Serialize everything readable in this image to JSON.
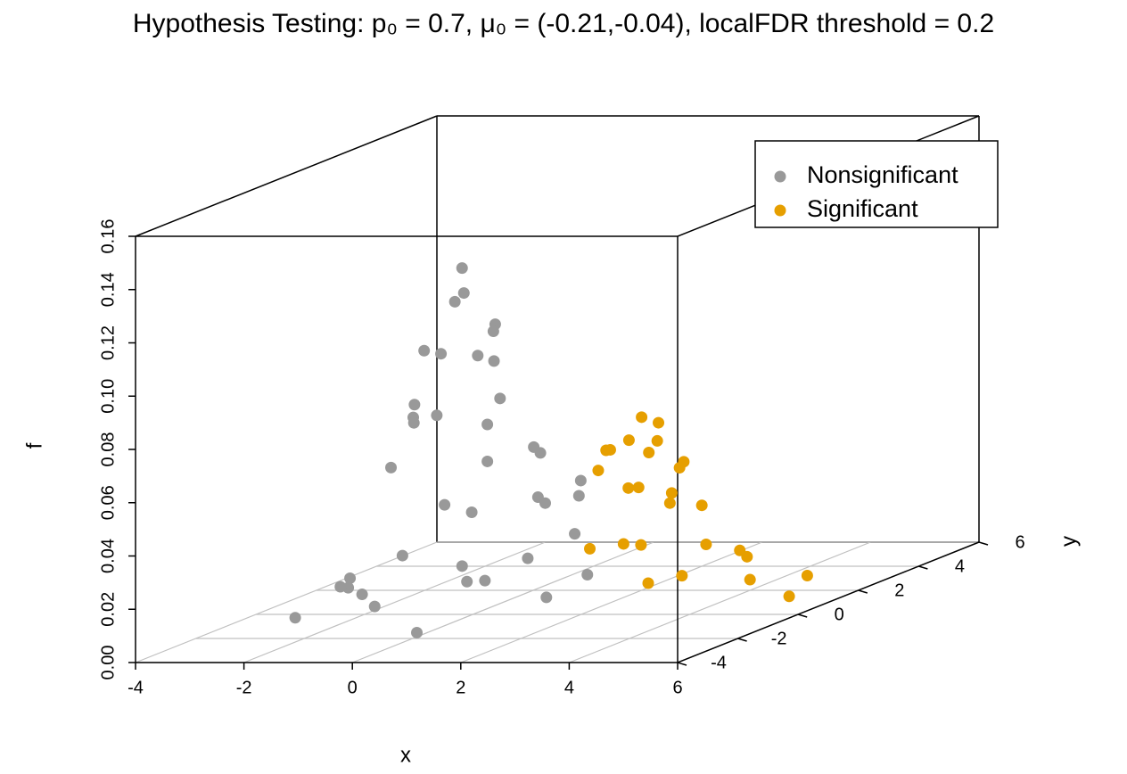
{
  "chart_data": {
    "type": "scatter3d",
    "title": "Hypothesis Testing: p₀ = 0.7, μ₀ = (-0.21,-0.04), localFDR threshold = 0.2",
    "x_label": "x",
    "y_label": "y",
    "z_label": "f",
    "xlim": [
      -4,
      6
    ],
    "ylim": [
      -4,
      6
    ],
    "zlim": [
      0,
      0.16
    ],
    "xticks": [
      -4,
      -2,
      0,
      2,
      4,
      6
    ],
    "yticks": [
      -4,
      -2,
      0,
      2,
      4,
      6
    ],
    "zticks": [
      {
        "value": 0,
        "label": "0.00"
      },
      0.02,
      0.04,
      0.06,
      0.08,
      {
        "value": 0.1,
        "label": "0.10"
      },
      0.12,
      0.14,
      0.16
    ],
    "grid": true,
    "legend": "topright",
    "series": [
      {
        "name": "Nonsignificant",
        "color": "#999999",
        "x": [
          -0.2,
          0.0,
          -0.5,
          0.3,
          -0.8,
          0.6,
          -1.0,
          0.8,
          -1.4,
          0.2,
          -0.4,
          1.2,
          -1.8,
          -1.6,
          1.0,
          -0.1,
          0.5,
          -2.3,
          -0.7,
          1.4,
          -1.2,
          -0.3,
          0.1,
          -0.9,
          0.5,
          -0.6,
          0.9,
          -1.2,
          0.0,
          -0.2,
          1.6,
          -2.0,
          -2.6,
          0.3,
          -1.5,
          1.8,
          -3.0,
          1.1,
          -0.8,
          2.0
        ],
        "y": [
          0.0,
          -0.3,
          0.3,
          0.2,
          -0.5,
          -0.6,
          0.6,
          0.8,
          -0.2,
          -1.3,
          1.2,
          0.0,
          0.9,
          -1.2,
          -1.4,
          2.0,
          1.5,
          0.0,
          -2.0,
          1.0,
          1.8,
          0.7,
          0.5,
          0.0,
          -0.2,
          -0.9,
          0.4,
          0.2,
          0.9,
          -0.7,
          0.5,
          -0.8,
          1.0,
          -2.4,
          2.5,
          -0.8,
          -0.5,
          1.6,
          1.4,
          0.2
        ],
        "z": [
          0.13,
          0.122,
          0.116,
          0.108,
          0.081,
          0.074,
          0.072,
          0.057,
          0.056,
          0.047,
          0.052,
          0.044,
          0.018,
          0.019,
          0.019,
          0.012,
          0.035,
          0.01,
          0.012,
          0.04,
          0.01,
          0.094,
          0.104,
          0.099,
          0.096,
          0.078,
          0.061,
          0.071,
          0.077,
          0.101,
          0.028,
          0.014,
          0.003,
          0.004,
          0.001,
          0.01,
          0.001,
          0.043,
          0.032,
          0.014
        ]
      },
      {
        "name": "Significant",
        "color": "#E69F00",
        "x": [
          2.0,
          2.4,
          1.6,
          2.5,
          1.7,
          2.2,
          1.5,
          2.8,
          3.0,
          1.2,
          2.0,
          2.6,
          3.3,
          1.0,
          3.5,
          2.3,
          4.0,
          2.9,
          4.5,
          5.0,
          1.8,
          2.2,
          2.7,
          1.4,
          3.2,
          0.6
        ],
        "y": [
          2.0,
          1.8,
          2.3,
          2.5,
          1.5,
          1.2,
          2.8,
          1.5,
          2.2,
          2.0,
          3.0,
          0.9,
          1.0,
          3.2,
          2.8,
          3.6,
          2.0,
          0.6,
          3.0,
          1.5,
          2.6,
          2.2,
          2.0,
          1.9,
          3.1,
          2.8
        ],
        "z": [
          0.065,
          0.057,
          0.055,
          0.046,
          0.055,
          0.042,
          0.035,
          0.035,
          0.031,
          0.045,
          0.032,
          0.022,
          0.01,
          0.012,
          0.009,
          0.01,
          0.004,
          0.009,
          0.001,
          0.0,
          0.049,
          0.062,
          0.046,
          0.053,
          0.01,
          0.012
        ]
      }
    ]
  }
}
